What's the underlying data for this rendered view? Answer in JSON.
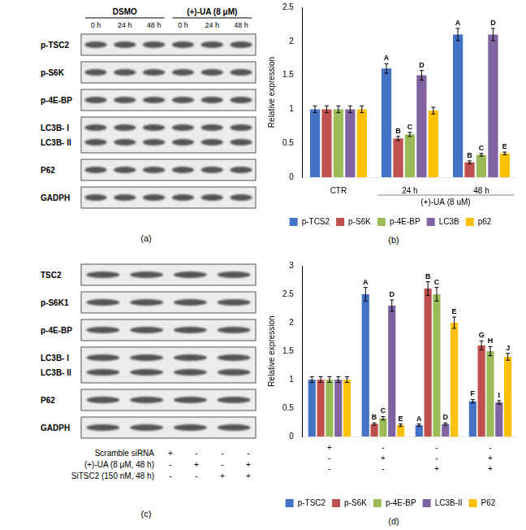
{
  "blots": [
    {
      "panel": "(a)",
      "groups": [
        {
          "text": "DSMO",
          "lanes": [
            "0 h",
            "24 h",
            "48 h"
          ]
        },
        {
          "text": "(+)-UA (8 μM)",
          "lanes": [
            "0 h",
            "24 h",
            "48 h"
          ]
        }
      ],
      "rows": [
        [
          "p-TSC2"
        ],
        [
          "p-S6K"
        ],
        [
          "p-4E-BP"
        ],
        [
          "LC3B- I",
          "LC3B- II"
        ],
        [
          "P62"
        ],
        [
          "GADPH"
        ]
      ]
    },
    {
      "panel": "(c)",
      "rows": [
        [
          "TSC2"
        ],
        [
          "p-S6K1"
        ],
        [
          "p-4E-BP"
        ],
        [
          "LC3B- I",
          "LC3B- II"
        ],
        [
          "P62"
        ],
        [
          "GADPH"
        ]
      ],
      "treatments": [
        {
          "label": "Scramble siRNA",
          "marks": [
            "+",
            "-",
            "-",
            "-"
          ]
        },
        {
          "label": "(+)-UA (8 μM, 48 h)",
          "marks": [
            "-",
            "+",
            "-",
            "+"
          ]
        },
        {
          "label": "SiTSC2 (150 nM, 48 h)",
          "marks": [
            "-",
            "-",
            "+",
            "+"
          ]
        }
      ]
    }
  ],
  "chart_data": [
    {
      "panel": "(b)",
      "type": "bar",
      "y_label": "Relative expression",
      "categories": [
        "CTR",
        "24 h",
        "48 h"
      ],
      "category_groups": [
        {
          "text": "(+)-UA (8 uM)",
          "categories": [
            "24 h",
            "48 h"
          ]
        }
      ],
      "ylim": [
        0,
        2.5
      ],
      "yticks": [
        0,
        0.5,
        1,
        1.5,
        2,
        2.5
      ],
      "grid": false,
      "legend": "bottom",
      "series": [
        {
          "name": "p-TCS2",
          "color": "#4472c4",
          "values": [
            1,
            1.6,
            2.1
          ],
          "errors": [
            0.05,
            0.07,
            0.09
          ],
          "letters": [
            null,
            "A",
            "A"
          ]
        },
        {
          "name": "p-S6K",
          "color": "#c0504d",
          "values": [
            1,
            0.57,
            0.22
          ],
          "errors": [
            0.05,
            0.03,
            0.02
          ],
          "letters": [
            null,
            "B",
            "B"
          ]
        },
        {
          "name": "p-4E-BP",
          "color": "#9bbb59",
          "values": [
            1,
            0.63,
            0.33
          ],
          "errors": [
            0.05,
            0.03,
            0.02
          ],
          "letters": [
            null,
            "C",
            "C"
          ]
        },
        {
          "name": "LC3B",
          "color": "#8064a2",
          "values": [
            1,
            1.5,
            2.1
          ],
          "errors": [
            0.05,
            0.07,
            0.09
          ],
          "letters": [
            null,
            "D",
            "D"
          ]
        },
        {
          "name": "p62",
          "color": "#ffc000",
          "values": [
            1,
            0.98,
            0.35
          ],
          "errors": [
            0.05,
            0.05,
            0.02
          ],
          "letters": [
            null,
            null,
            "E"
          ]
        }
      ]
    },
    {
      "panel": "(d)",
      "type": "bar",
      "y_label": "Relative expression",
      "categories": [
        null,
        null,
        null,
        null
      ],
      "x_rows": [
        [
          "+",
          "-",
          "-",
          "-"
        ],
        [
          "-",
          "+",
          "-",
          "+"
        ],
        [
          "-",
          "-",
          "+",
          "+"
        ]
      ],
      "ylim": [
        0,
        3
      ],
      "yticks": [
        0,
        0.5,
        1,
        1.5,
        2,
        2.5,
        3
      ],
      "grid": false,
      "legend": "bottom",
      "series": [
        {
          "name": "p-TSC2",
          "color": "#4472c4",
          "values": [
            1,
            2.5,
            0.2,
            0.62
          ],
          "errors": [
            0.05,
            0.12,
            0.02,
            0.03
          ],
          "letters": [
            null,
            "A",
            "A",
            "F"
          ]
        },
        {
          "name": "p-S6K",
          "color": "#c0504d",
          "values": [
            1,
            0.22,
            2.6,
            1.6
          ],
          "errors": [
            0.05,
            0.02,
            0.12,
            0.08
          ],
          "letters": [
            null,
            "B",
            "B",
            "G"
          ]
        },
        {
          "name": "p-4E-BP",
          "color": "#9bbb59",
          "values": [
            1,
            0.32,
            2.5,
            1.5
          ],
          "errors": [
            0.05,
            0.03,
            0.12,
            0.08
          ],
          "letters": [
            null,
            "C",
            "C",
            "H"
          ]
        },
        {
          "name": "LC3B-II",
          "color": "#8064a2",
          "values": [
            1,
            2.3,
            0.22,
            0.6
          ],
          "errors": [
            0.05,
            0.1,
            0.02,
            0.03
          ],
          "letters": [
            null,
            "D",
            "D",
            "I"
          ]
        },
        {
          "name": "P62",
          "color": "#ffc000",
          "values": [
            1,
            0.2,
            2.0,
            1.4
          ],
          "errors": [
            0.05,
            0.02,
            0.1,
            0.06
          ],
          "letters": [
            null,
            "E",
            "E",
            "J"
          ]
        }
      ]
    }
  ]
}
